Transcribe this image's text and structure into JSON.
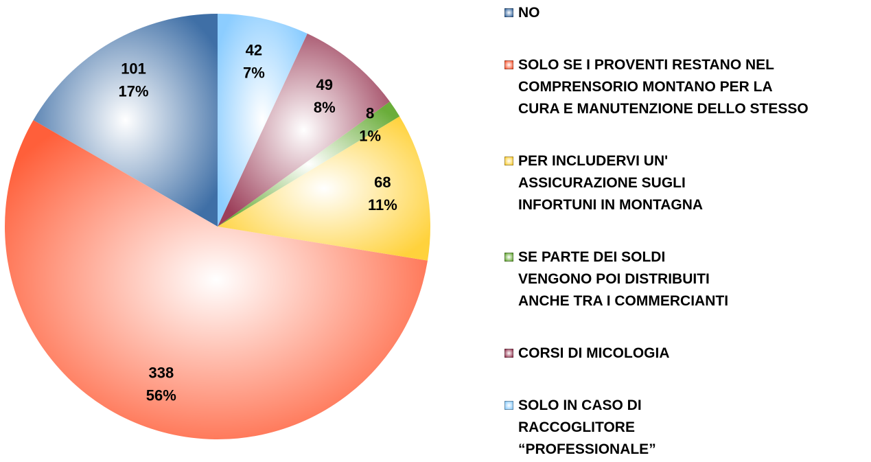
{
  "chart_data": {
    "type": "pie",
    "categories": [
      "NO",
      "SOLO SE I PROVENTI RESTANO NEL\nCOMPRENSORIO MONTANO PER LA\nCURA E MANUTENZIONE DELLO STESSO",
      "PER INCLUDERVI UN'\nASSICURAZIONE SUGLI\nINFORTUNI IN MONTAGNA",
      "SE PARTE DEI SOLDI\nVENGONO POI DISTRIBUITI\nANCHE TRA I COMMERCIANTI",
      "CORSI DI MICOLOGIA",
      "SOLO IN CASO DI\nRACCOGLITORE\n“PROFESSIONALE”"
    ],
    "values": [
      101,
      338,
      68,
      8,
      49,
      42
    ],
    "percent_labels": [
      "17%",
      "56%",
      "11%",
      "1%",
      "8%",
      "7%"
    ],
    "colors": [
      "#3f6fa6",
      "#ff5f3a",
      "#ffd23c",
      "#6aad3a",
      "#9c3f5a",
      "#8ccdff"
    ],
    "direction": "counterclockwise",
    "legend": "right"
  }
}
